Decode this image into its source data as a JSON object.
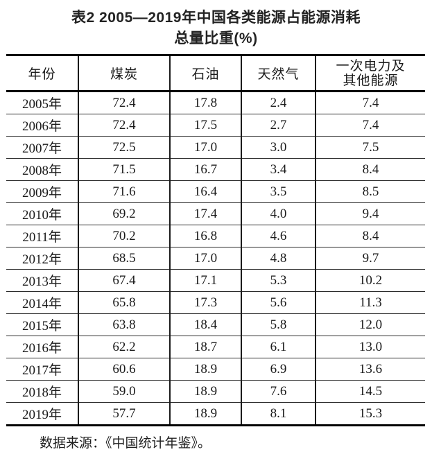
{
  "page": {
    "title_line1": "表2 2005—2019年中国各类能源占能源消耗",
    "title_line2": "总量比重(%)",
    "source_note": "数据来源：《中国统计年鉴》。"
  },
  "table": {
    "headers": {
      "year": "年份",
      "coal": "煤炭",
      "oil": "石油",
      "gas": "天然气",
      "electricity_line1": "一次电力及",
      "electricity_line2": "其他能源"
    },
    "rows": [
      {
        "year": "2005年",
        "coal": "72.4",
        "oil": "17.8",
        "gas": "2.4",
        "electricity": "7.4"
      },
      {
        "year": "2006年",
        "coal": "72.4",
        "oil": "17.5",
        "gas": "2.7",
        "electricity": "7.4"
      },
      {
        "year": "2007年",
        "coal": "72.5",
        "oil": "17.0",
        "gas": "3.0",
        "electricity": "7.5"
      },
      {
        "year": "2008年",
        "coal": "71.5",
        "oil": "16.7",
        "gas": "3.4",
        "electricity": "8.4"
      },
      {
        "year": "2009年",
        "coal": "71.6",
        "oil": "16.4",
        "gas": "3.5",
        "electricity": "8.5"
      },
      {
        "year": "2010年",
        "coal": "69.2",
        "oil": "17.4",
        "gas": "4.0",
        "electricity": "9.4"
      },
      {
        "year": "2011年",
        "coal": "70.2",
        "oil": "16.8",
        "gas": "4.6",
        "electricity": "8.4"
      },
      {
        "year": "2012年",
        "coal": "68.5",
        "oil": "17.0",
        "gas": "4.8",
        "electricity": "9.7"
      },
      {
        "year": "2013年",
        "coal": "67.4",
        "oil": "17.1",
        "gas": "5.3",
        "electricity": "10.2"
      },
      {
        "year": "2014年",
        "coal": "65.8",
        "oil": "17.3",
        "gas": "5.6",
        "electricity": "11.3"
      },
      {
        "year": "2015年",
        "coal": "63.8",
        "oil": "18.4",
        "gas": "5.8",
        "electricity": "12.0"
      },
      {
        "year": "2016年",
        "coal": "62.2",
        "oil": "18.7",
        "gas": "6.1",
        "electricity": "13.0"
      },
      {
        "year": "2017年",
        "coal": "60.6",
        "oil": "18.9",
        "gas": "6.9",
        "electricity": "13.6"
      },
      {
        "year": "2018年",
        "coal": "59.0",
        "oil": "18.9",
        "gas": "7.6",
        "electricity": "14.5"
      },
      {
        "year": "2019年",
        "coal": "57.7",
        "oil": "18.9",
        "gas": "8.1",
        "electricity": "15.3"
      }
    ]
  },
  "chart_data": {
    "type": "table",
    "title": "表2 2005—2019年中国各类能源占能源消耗总量比重(%)",
    "columns": [
      "年份",
      "煤炭",
      "石油",
      "天然气",
      "一次电力及其他能源"
    ],
    "rows": [
      [
        "2005年",
        72.4,
        17.8,
        2.4,
        7.4
      ],
      [
        "2006年",
        72.4,
        17.5,
        2.7,
        7.4
      ],
      [
        "2007年",
        72.5,
        17.0,
        3.0,
        7.5
      ],
      [
        "2008年",
        71.5,
        16.7,
        3.4,
        8.4
      ],
      [
        "2009年",
        71.6,
        16.4,
        3.5,
        8.5
      ],
      [
        "2010年",
        69.2,
        17.4,
        4.0,
        9.4
      ],
      [
        "2011年",
        70.2,
        16.8,
        4.6,
        8.4
      ],
      [
        "2012年",
        68.5,
        17.0,
        4.8,
        9.7
      ],
      [
        "2013年",
        67.4,
        17.1,
        5.3,
        10.2
      ],
      [
        "2014年",
        65.8,
        17.3,
        5.6,
        11.3
      ],
      [
        "2015年",
        63.8,
        18.4,
        5.8,
        12.0
      ],
      [
        "2016年",
        62.2,
        18.7,
        6.1,
        13.0
      ],
      [
        "2017年",
        60.6,
        18.9,
        6.9,
        13.6
      ],
      [
        "2018年",
        59.0,
        18.9,
        7.6,
        14.5
      ],
      [
        "2019年",
        57.7,
        18.9,
        8.1,
        15.3
      ]
    ],
    "source": "数据来源：《中国统计年鉴》。"
  }
}
